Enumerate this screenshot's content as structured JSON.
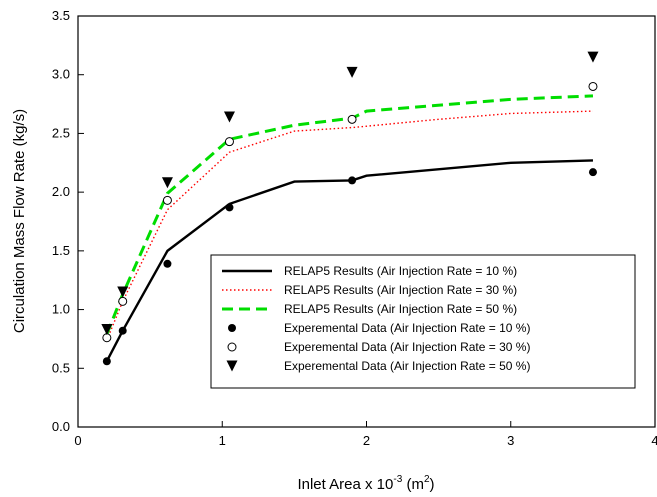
{
  "chart_data": {
    "type": "line",
    "xlabel": "Inlet Area x 10",
    "xlabel_exp": "-3",
    "xlabel_unit_open": " (m",
    "xlabel_unit_exp": "2",
    "xlabel_unit_close": ")",
    "ylabel": "Circulation Mass Flow Rate (kg/s)",
    "xlim": [
      0,
      4
    ],
    "ylim": [
      0,
      3.5
    ],
    "xticks": [
      "0",
      "1",
      "2",
      "3",
      "4"
    ],
    "yticks": [
      "0.0",
      "0.5",
      "1.0",
      "1.5",
      "2.0",
      "2.5",
      "3.0",
      "3.5"
    ],
    "grid": false,
    "legend_position": "lower-right",
    "series": [
      {
        "name": "RELAP5 Results (Air Injection Rate = 10 %)",
        "kind": "line",
        "style": "solid",
        "color": "#000000",
        "x": [
          0.2,
          0.31,
          0.62,
          1.05,
          1.5,
          1.9,
          2.0,
          3.0,
          3.57
        ],
        "y": [
          0.56,
          0.82,
          1.5,
          1.9,
          2.09,
          2.1,
          2.14,
          2.25,
          2.27
        ]
      },
      {
        "name": "RELAP5 Results (Air Injection Rate = 30 %)",
        "kind": "line",
        "style": "dotted",
        "color": "#ff0000",
        "x": [
          0.2,
          0.31,
          0.62,
          1.05,
          1.5,
          1.9,
          2.5,
          3.0,
          3.57
        ],
        "y": [
          0.74,
          1.07,
          1.85,
          2.34,
          2.52,
          2.55,
          2.62,
          2.67,
          2.69
        ]
      },
      {
        "name": "RELAP5 Results (Air Injection Rate = 50 %)",
        "kind": "line",
        "style": "dashed",
        "color": "#00dd00",
        "x": [
          0.2,
          0.31,
          0.62,
          1.05,
          1.5,
          1.9,
          2.0,
          3.0,
          3.57
        ],
        "y": [
          0.79,
          1.13,
          1.99,
          2.45,
          2.57,
          2.63,
          2.69,
          2.79,
          2.82
        ]
      },
      {
        "name": "Experemental Data (Air Injection Rate = 10 %)",
        "kind": "marker",
        "marker": "filled-circle",
        "color": "#000000",
        "x": [
          0.2,
          0.31,
          0.62,
          1.05,
          1.9,
          3.57
        ],
        "y": [
          0.56,
          0.82,
          1.39,
          1.87,
          2.1,
          2.17
        ]
      },
      {
        "name": "Experemental Data (Air Injection Rate = 30 %)",
        "kind": "marker",
        "marker": "open-circle",
        "color": "#000000",
        "x": [
          0.2,
          0.31,
          0.62,
          1.05,
          1.9,
          3.57
        ],
        "y": [
          0.76,
          1.07,
          1.93,
          2.43,
          2.62,
          2.9
        ]
      },
      {
        "name": "Experemental Data (Air Injection Rate = 50 %)",
        "kind": "marker",
        "marker": "down-triangle",
        "color": "#000000",
        "x": [
          0.2,
          0.31,
          0.62,
          1.05,
          1.9,
          3.57
        ],
        "y": [
          0.83,
          1.15,
          2.08,
          2.64,
          3.02,
          3.15
        ]
      }
    ]
  }
}
